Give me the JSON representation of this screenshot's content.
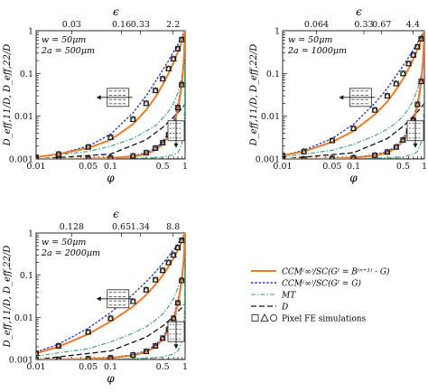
{
  "chart_data": [
    {
      "type": "line",
      "x_scale": "log",
      "y_scale": "log",
      "xlim": [
        0.01,
        1
      ],
      "ylim": [
        0.001,
        1
      ],
      "grid": false,
      "xlabel": "φ",
      "ylabel": "D_eff,11/D, D_eff,22/D",
      "top_axis_label": "ϵ",
      "top_ticks": [
        "0.03",
        "0.16",
        "0.33",
        "2.2"
      ],
      "top_tick_phi": [
        0.03,
        0.14,
        0.25,
        0.69
      ],
      "bottom_ticks": [
        "0.01",
        "0.05",
        "0.1",
        "0.5",
        "1"
      ],
      "y_ticks": [
        "0.001",
        "0.01",
        "0.1",
        "1"
      ],
      "annotations": [
        "w = 50μm",
        "2a = 500μm"
      ],
      "curves": [
        {
          "key": "ccm_b",
          "direction": "D11",
          "x": [
            0.01,
            0.02,
            0.05,
            0.1,
            0.2,
            0.3,
            0.4,
            0.5,
            0.6,
            0.7,
            0.8,
            0.9,
            0.95,
            1.0
          ],
          "y": [
            0.0011,
            0.0013,
            0.0018,
            0.0028,
            0.0065,
            0.014,
            0.028,
            0.055,
            0.1,
            0.18,
            0.32,
            0.55,
            0.75,
            1.0
          ]
        },
        {
          "key": "ccm_g",
          "direction": "D11",
          "x": [
            0.01,
            0.02,
            0.05,
            0.1,
            0.2,
            0.3,
            0.4,
            0.5,
            0.6,
            0.7,
            0.8,
            0.9,
            0.95,
            1.0
          ],
          "y": [
            0.0011,
            0.0013,
            0.002,
            0.0038,
            0.012,
            0.03,
            0.065,
            0.12,
            0.2,
            0.32,
            0.48,
            0.7,
            0.85,
            1.0
          ]
        },
        {
          "key": "mt",
          "direction": "D11",
          "x": [
            0.01,
            0.05,
            0.1,
            0.2,
            0.3,
            0.4,
            0.5,
            0.6,
            0.7,
            0.8,
            0.9,
            0.95,
            1.0
          ],
          "y": [
            0.0011,
            0.0015,
            0.002,
            0.003,
            0.0045,
            0.006,
            0.009,
            0.013,
            0.02,
            0.035,
            0.08,
            0.18,
            1.0
          ]
        },
        {
          "key": "ccm_b",
          "direction": "D22",
          "x": [
            0.01,
            0.05,
            0.1,
            0.2,
            0.3,
            0.4,
            0.5,
            0.6,
            0.7,
            0.8,
            0.9,
            0.95,
            1.0
          ],
          "y": [
            0.001,
            0.00102,
            0.00105,
            0.00115,
            0.0013,
            0.0016,
            0.0022,
            0.0035,
            0.006,
            0.014,
            0.05,
            0.15,
            1.0
          ]
        },
        {
          "key": "ccm_g",
          "direction": "D22",
          "x": [
            0.01,
            0.05,
            0.1,
            0.2,
            0.3,
            0.4,
            0.5,
            0.6,
            0.7,
            0.8,
            0.9,
            0.95,
            1.0
          ],
          "y": [
            0.001,
            0.00102,
            0.00105,
            0.00118,
            0.0014,
            0.0018,
            0.0025,
            0.004,
            0.0075,
            0.018,
            0.06,
            0.18,
            1.0
          ]
        },
        {
          "key": "mt",
          "direction": "D22",
          "x": [
            0.01,
            0.1,
            0.3,
            0.5,
            0.7,
            0.8,
            0.9,
            0.95,
            0.98,
            1.0
          ],
          "y": [
            0.001,
            0.00102,
            0.00105,
            0.0011,
            0.00125,
            0.0014,
            0.0022,
            0.004,
            0.012,
            1.0
          ]
        },
        {
          "key": "D",
          "direction": "D11",
          "x": [
            0.01,
            0.1,
            0.3,
            0.5,
            0.7,
            0.9,
            1.0
          ],
          "y": [
            0.001,
            0.0013,
            0.0028,
            0.0055,
            0.0095,
            0.015,
            0.019
          ]
        },
        {
          "key": "D",
          "direction": "D22",
          "x": [
            0.01,
            0.1,
            0.5,
            1.0
          ],
          "y": [
            0.001,
            0.001,
            0.001,
            0.001
          ]
        }
      ],
      "fe_markers": [
        {
          "direction": "D11",
          "x": [
            0.01,
            0.02,
            0.05,
            0.1,
            0.2,
            0.3,
            0.4,
            0.5,
            0.6,
            0.7,
            0.8,
            0.9
          ],
          "y": [
            0.0011,
            0.0013,
            0.0019,
            0.0032,
            0.0085,
            0.02,
            0.04,
            0.075,
            0.13,
            0.22,
            0.38,
            0.62
          ]
        },
        {
          "direction": "D22",
          "x": [
            0.01,
            0.02,
            0.05,
            0.1,
            0.2,
            0.3,
            0.4,
            0.5,
            0.6,
            0.7,
            0.8,
            0.9
          ],
          "y": [
            0.001,
            0.001,
            0.00102,
            0.00106,
            0.00118,
            0.0014,
            0.0018,
            0.0024,
            0.0037,
            0.0068,
            0.016,
            0.055
          ]
        }
      ]
    },
    {
      "type": "line",
      "x_scale": "log",
      "y_scale": "log",
      "xlim": [
        0.01,
        1
      ],
      "ylim": [
        0.001,
        1
      ],
      "grid": false,
      "xlabel": "φ",
      "ylabel": "D_eff,11/D, D_eff,22/D",
      "top_axis_label": "ϵ",
      "top_ticks": [
        "0.064",
        "0.33",
        "0.67",
        "4.4"
      ],
      "top_tick_phi": [
        0.03,
        0.14,
        0.25,
        0.69
      ],
      "bottom_ticks": [
        "0.01",
        "0.05",
        "0.1",
        "0.5",
        "1"
      ],
      "y_ticks": [
        "0.001",
        "0.01",
        "0.1",
        "1"
      ],
      "annotations": [
        "w = 50μm",
        "2a = 1000μm"
      ],
      "curves": [
        {
          "key": "ccm_b",
          "direction": "D11",
          "x": [
            0.01,
            0.02,
            0.05,
            0.1,
            0.2,
            0.3,
            0.4,
            0.5,
            0.6,
            0.7,
            0.8,
            0.9,
            0.95,
            1.0
          ],
          "y": [
            0.0012,
            0.0015,
            0.0025,
            0.0045,
            0.011,
            0.022,
            0.042,
            0.075,
            0.13,
            0.22,
            0.36,
            0.6,
            0.78,
            1.0
          ]
        },
        {
          "key": "ccm_g",
          "direction": "D11",
          "x": [
            0.01,
            0.02,
            0.05,
            0.1,
            0.2,
            0.3,
            0.4,
            0.5,
            0.6,
            0.7,
            0.8,
            0.9,
            0.95,
            1.0
          ],
          "y": [
            0.0012,
            0.0016,
            0.003,
            0.0065,
            0.02,
            0.045,
            0.09,
            0.15,
            0.24,
            0.36,
            0.52,
            0.73,
            0.86,
            1.0
          ]
        },
        {
          "key": "mt",
          "direction": "D11",
          "x": [
            0.01,
            0.05,
            0.1,
            0.2,
            0.3,
            0.4,
            0.5,
            0.6,
            0.7,
            0.8,
            0.9,
            0.95,
            1.0
          ],
          "y": [
            0.0011,
            0.0016,
            0.0022,
            0.0035,
            0.005,
            0.007,
            0.01,
            0.015,
            0.024,
            0.042,
            0.09,
            0.2,
            1.0
          ]
        },
        {
          "key": "ccm_b",
          "direction": "D22",
          "x": [
            0.01,
            0.05,
            0.1,
            0.2,
            0.3,
            0.4,
            0.5,
            0.6,
            0.7,
            0.8,
            0.9,
            0.95,
            1.0
          ],
          "y": [
            0.001,
            0.00102,
            0.00106,
            0.0012,
            0.0014,
            0.0018,
            0.0026,
            0.0042,
            0.0075,
            0.017,
            0.06,
            0.17,
            1.0
          ]
        },
        {
          "key": "ccm_g",
          "direction": "D22",
          "x": [
            0.01,
            0.05,
            0.1,
            0.2,
            0.3,
            0.4,
            0.5,
            0.6,
            0.7,
            0.8,
            0.9,
            0.95,
            1.0
          ],
          "y": [
            0.001,
            0.00103,
            0.00108,
            0.00125,
            0.0015,
            0.002,
            0.003,
            0.0048,
            0.0088,
            0.021,
            0.07,
            0.2,
            1.0
          ]
        },
        {
          "key": "mt",
          "direction": "D22",
          "x": [
            0.01,
            0.1,
            0.3,
            0.5,
            0.7,
            0.8,
            0.9,
            0.95,
            0.98,
            1.0
          ],
          "y": [
            0.001,
            0.00102,
            0.00106,
            0.00112,
            0.0013,
            0.0015,
            0.0024,
            0.0045,
            0.013,
            1.0
          ]
        },
        {
          "key": "D",
          "direction": "D11",
          "x": [
            0.01,
            0.1,
            0.3,
            0.5,
            0.7,
            0.9,
            1.0
          ],
          "y": [
            0.001,
            0.0014,
            0.003,
            0.0058,
            0.01,
            0.016,
            0.02
          ]
        },
        {
          "key": "D",
          "direction": "D22",
          "x": [
            0.01,
            0.1,
            0.5,
            1.0
          ],
          "y": [
            0.001,
            0.001,
            0.001,
            0.001
          ]
        }
      ],
      "fe_markers": [
        {
          "direction": "D11",
          "x": [
            0.01,
            0.02,
            0.05,
            0.1,
            0.2,
            0.3,
            0.4,
            0.5,
            0.6,
            0.7,
            0.8,
            0.9
          ],
          "y": [
            0.0012,
            0.0015,
            0.0027,
            0.0052,
            0.014,
            0.03,
            0.058,
            0.1,
            0.17,
            0.27,
            0.42,
            0.65
          ]
        },
        {
          "direction": "D22",
          "x": [
            0.01,
            0.02,
            0.05,
            0.1,
            0.2,
            0.3,
            0.4,
            0.5,
            0.6,
            0.7,
            0.8,
            0.9
          ],
          "y": [
            0.001,
            0.001,
            0.00103,
            0.00107,
            0.00122,
            0.00145,
            0.0019,
            0.0028,
            0.0045,
            0.008,
            0.019,
            0.065
          ]
        }
      ]
    },
    {
      "type": "line",
      "x_scale": "log",
      "y_scale": "log",
      "xlim": [
        0.01,
        1
      ],
      "ylim": [
        0.001,
        1
      ],
      "grid": false,
      "xlabel": "φ",
      "ylabel": "D_eff,11/D, D_eff,22/D",
      "top_axis_label": "ϵ",
      "top_ticks": [
        "0.128",
        "0.65",
        "1.34",
        "8.8"
      ],
      "top_tick_phi": [
        0.03,
        0.14,
        0.25,
        0.69
      ],
      "bottom_ticks": [
        "0.01",
        "0.05",
        "0.1",
        "0.5",
        "1"
      ],
      "y_ticks": [
        "0.001",
        "0.01",
        "0.1",
        "1"
      ],
      "annotations": [
        "w = 50μm",
        "2a = 2000μm"
      ],
      "curves": [
        {
          "key": "ccm_b",
          "direction": "D11",
          "x": [
            0.01,
            0.02,
            0.05,
            0.1,
            0.2,
            0.3,
            0.4,
            0.5,
            0.6,
            0.7,
            0.8,
            0.9,
            0.95,
            1.0
          ],
          "y": [
            0.0014,
            0.002,
            0.004,
            0.008,
            0.018,
            0.034,
            0.06,
            0.1,
            0.16,
            0.25,
            0.4,
            0.62,
            0.8,
            1.0
          ]
        },
        {
          "key": "ccm_g",
          "direction": "D11",
          "x": [
            0.01,
            0.02,
            0.05,
            0.1,
            0.2,
            0.3,
            0.4,
            0.5,
            0.6,
            0.7,
            0.8,
            0.9,
            0.95,
            1.0
          ],
          "y": [
            0.0015,
            0.0023,
            0.0055,
            0.013,
            0.035,
            0.07,
            0.12,
            0.19,
            0.28,
            0.4,
            0.55,
            0.75,
            0.87,
            1.0
          ]
        },
        {
          "key": "mt",
          "direction": "D11",
          "x": [
            0.01,
            0.05,
            0.1,
            0.2,
            0.3,
            0.4,
            0.5,
            0.6,
            0.7,
            0.8,
            0.9,
            0.95,
            1.0
          ],
          "y": [
            0.0012,
            0.0018,
            0.0026,
            0.0042,
            0.006,
            0.0085,
            0.012,
            0.018,
            0.028,
            0.05,
            0.1,
            0.22,
            1.0
          ]
        },
        {
          "key": "ccm_b",
          "direction": "D22",
          "x": [
            0.01,
            0.05,
            0.1,
            0.2,
            0.3,
            0.4,
            0.5,
            0.6,
            0.7,
            0.8,
            0.9,
            0.95,
            1.0
          ],
          "y": [
            0.001,
            0.00103,
            0.00108,
            0.00125,
            0.0015,
            0.002,
            0.003,
            0.005,
            0.009,
            0.02,
            0.07,
            0.19,
            1.0
          ]
        },
        {
          "key": "ccm_g",
          "direction": "D22",
          "x": [
            0.01,
            0.05,
            0.1,
            0.2,
            0.3,
            0.4,
            0.5,
            0.6,
            0.7,
            0.8,
            0.9,
            0.95,
            1.0
          ],
          "y": [
            0.001,
            0.00104,
            0.0011,
            0.0013,
            0.0016,
            0.0022,
            0.0034,
            0.0056,
            0.0102,
            0.024,
            0.08,
            0.22,
            1.0
          ]
        },
        {
          "key": "mt",
          "direction": "D22",
          "x": [
            0.01,
            0.1,
            0.3,
            0.5,
            0.7,
            0.8,
            0.9,
            0.95,
            0.98,
            1.0
          ],
          "y": [
            0.001,
            0.00102,
            0.00107,
            0.00115,
            0.00135,
            0.0016,
            0.0026,
            0.005,
            0.014,
            1.0
          ]
        },
        {
          "key": "D",
          "direction": "D11",
          "x": [
            0.01,
            0.1,
            0.3,
            0.5,
            0.7,
            0.9,
            1.0
          ],
          "y": [
            0.001,
            0.0016,
            0.0034,
            0.0062,
            0.0105,
            0.017,
            0.021
          ]
        },
        {
          "key": "D",
          "direction": "D22",
          "x": [
            0.01,
            0.1,
            0.5,
            1.0
          ],
          "y": [
            0.001,
            0.001,
            0.001,
            0.001
          ]
        }
      ],
      "fe_markers": [
        {
          "direction": "D11",
          "x": [
            0.01,
            0.02,
            0.05,
            0.1,
            0.2,
            0.3,
            0.4,
            0.5,
            0.6,
            0.7,
            0.8,
            0.9
          ],
          "y": [
            0.0014,
            0.0021,
            0.0045,
            0.0095,
            0.024,
            0.045,
            0.078,
            0.13,
            0.2,
            0.3,
            0.45,
            0.67
          ]
        },
        {
          "direction": "D22",
          "x": [
            0.01,
            0.02,
            0.05,
            0.1,
            0.2,
            0.3,
            0.4,
            0.5,
            0.6,
            0.7,
            0.8,
            0.9
          ],
          "y": [
            0.001,
            0.001,
            0.00104,
            0.00109,
            0.00128,
            0.00155,
            0.0021,
            0.0032,
            0.0052,
            0.0095,
            0.022,
            0.075
          ]
        }
      ]
    }
  ],
  "legend": {
    "items": [
      {
        "key": "ccm_b",
        "label": "CCM⁽∞⁾/SC(Gᴵ = B⁽ⁿ⁺¹⁾ · G)",
        "color": "#ee7d2b",
        "dash": "",
        "width": 2
      },
      {
        "key": "ccm_g",
        "label": "CCM⁽∞⁾/SC(Gᴵ = G)",
        "color": "#2a3ec9",
        "dash": "2.5,1.8",
        "width": 1.4
      },
      {
        "key": "mt",
        "label": "MT",
        "color": "#3aa06a",
        "dash": "5,2,1.5,2",
        "width": 1.1
      },
      {
        "key": "D",
        "label": "D",
        "color": "#111111",
        "dash": "6,3",
        "width": 1.3
      }
    ],
    "fe_label": "Pixel FE simulations"
  }
}
